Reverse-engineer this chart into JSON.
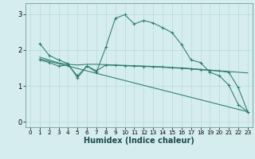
{
  "bg_color": "#d6edef",
  "grid_color": "#b8d8dc",
  "line_color": "#2a7a6e",
  "xlabel": "Humidex (Indice chaleur)",
  "xlabel_fontsize": 7,
  "tick_fontsize": 6,
  "ylim": [
    -0.15,
    3.3
  ],
  "xlim": [
    -0.5,
    23.5
  ],
  "yticks": [
    0,
    1,
    2,
    3
  ],
  "xticks": [
    0,
    1,
    2,
    3,
    4,
    5,
    6,
    7,
    8,
    9,
    10,
    11,
    12,
    13,
    14,
    15,
    16,
    17,
    18,
    19,
    20,
    21,
    22,
    23
  ],
  "curve1_x": [
    1,
    2,
    3,
    4,
    5,
    6,
    7,
    8,
    9,
    10,
    11,
    12,
    13,
    14,
    15,
    16,
    17,
    18,
    19,
    20,
    21,
    22,
    23
  ],
  "curve1_y": [
    2.18,
    1.85,
    1.72,
    1.62,
    1.22,
    1.55,
    1.38,
    2.08,
    2.88,
    2.98,
    2.72,
    2.82,
    2.75,
    2.62,
    2.48,
    2.15,
    1.72,
    1.65,
    1.38,
    1.28,
    1.02,
    0.48,
    0.28
  ],
  "curve2_x": [
    1,
    2,
    3,
    4,
    5,
    6,
    7,
    8,
    9,
    10,
    11,
    12,
    13,
    14,
    15,
    16,
    17,
    18,
    19,
    20,
    21,
    22,
    23
  ],
  "curve2_y": [
    1.8,
    1.72,
    1.64,
    1.6,
    1.58,
    1.6,
    1.6,
    1.59,
    1.58,
    1.57,
    1.56,
    1.55,
    1.54,
    1.53,
    1.51,
    1.5,
    1.48,
    1.46,
    1.44,
    1.42,
    1.4,
    1.38,
    1.36
  ],
  "curve3_x": [
    1,
    2,
    3,
    4,
    5,
    6,
    7,
    8,
    9,
    10,
    11,
    12,
    13,
    14,
    15,
    16,
    17,
    18,
    19,
    20,
    21,
    22,
    23
  ],
  "curve3_y": [
    1.72,
    1.65,
    1.55,
    1.58,
    1.28,
    1.55,
    1.42,
    1.58,
    1.57,
    1.56,
    1.55,
    1.54,
    1.53,
    1.52,
    1.5,
    1.49,
    1.47,
    1.45,
    1.43,
    1.41,
    1.38,
    0.95,
    0.28
  ],
  "curve4_x": [
    1,
    23
  ],
  "curve4_y": [
    1.75,
    0.28
  ]
}
